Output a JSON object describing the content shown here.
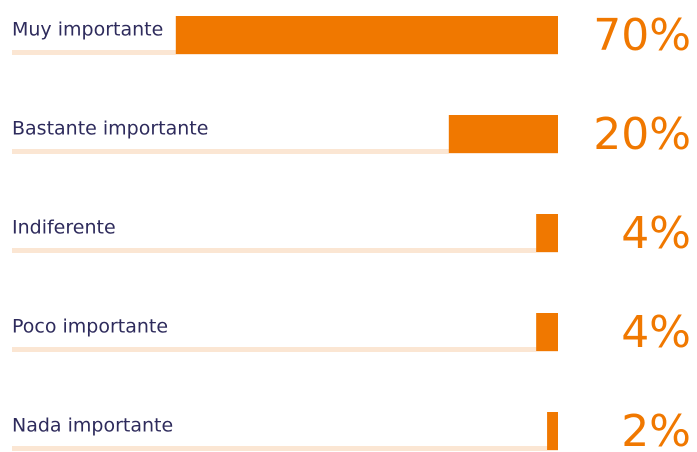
{
  "chart_data": {
    "type": "bar",
    "orientation": "horizontal",
    "direction": "right-to-left",
    "categories": [
      "Muy importante",
      "Bastante importante",
      "Indiferente",
      "Poco importante",
      "Nada importante"
    ],
    "values": [
      70,
      20,
      4,
      4,
      2
    ],
    "value_labels": [
      "70%",
      "20%",
      "4%",
      "4%",
      "2%"
    ],
    "color": "#f07800",
    "track_color": "#fbe6d3",
    "label_color": "#2e2b5c",
    "xlim": [
      0,
      100
    ]
  }
}
